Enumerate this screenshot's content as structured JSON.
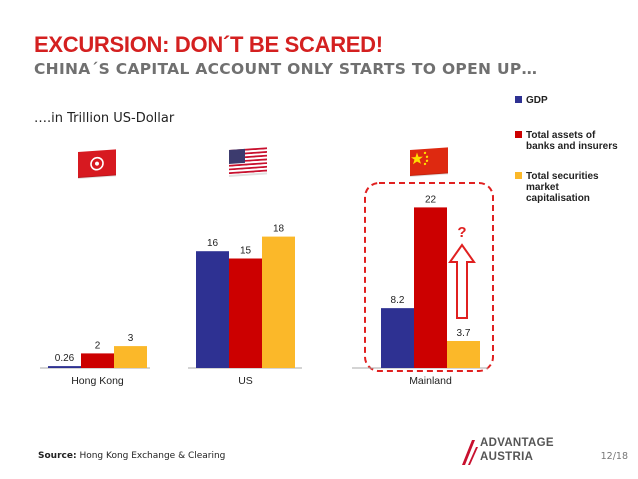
{
  "slide": {
    "title": "EXCURSION: DON´T BE SCARED!",
    "subtitle": "CHINA´S CAPITAL ACCOUNT ONLY STARTS TO OPEN UP…",
    "unit_note": "….in Trillion US-Dollar"
  },
  "chart_data": {
    "type": "bar",
    "categories": [
      "Hong Kong",
      "US",
      "Mainland"
    ],
    "series": [
      {
        "name": "GDP",
        "color": "#2e3192",
        "values": [
          0.26,
          16,
          8.2
        ],
        "labels": [
          "0.26",
          "16",
          "8.2"
        ]
      },
      {
        "name": "Total assets of banks and insurers",
        "color": "#cc0000",
        "values": [
          2,
          15,
          22
        ],
        "labels": [
          "2",
          "15",
          "22"
        ]
      },
      {
        "name": "Total securities market capitalisation",
        "color": "#fbb829",
        "values": [
          3,
          18,
          3.7
        ],
        "labels": [
          "3",
          "18",
          "3.7"
        ]
      }
    ],
    "legend_lines": [
      [
        "GDP"
      ],
      [
        "Total assets of",
        "banks and insurers"
      ],
      [
        "Total securities",
        "market",
        "capitalisation"
      ]
    ],
    "annotation": "?",
    "flags": [
      "hong-kong-flag-icon",
      "us-flag-icon",
      "china-flag-icon"
    ],
    "legend_position": "top-right",
    "grid": false
  },
  "footer": {
    "source_label": "Source:",
    "source_text": "Hong Kong Exchange & Clearing",
    "logo_line1": "ADVANTAGE",
    "logo_line2": "AUSTRIA",
    "page": "12/18"
  }
}
